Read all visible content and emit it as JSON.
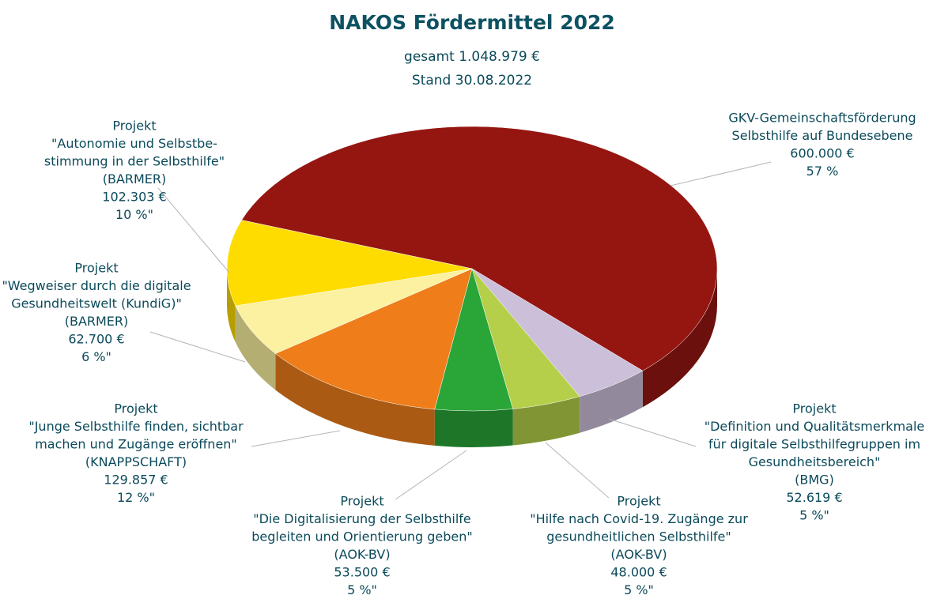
{
  "chart_data": {
    "type": "pie",
    "title": "NAKOS Fördermittel 2022",
    "subtitle": [
      "gesamt 1.048.979 €",
      "Stand 30.08.2022"
    ],
    "labels": [
      [
        "GKV-Gemeinschaftsförderung",
        "Selbsthilfe auf Bundesebene"
      ],
      [
        "Projekt",
        "\"Definition und Qualitätsmerkmale",
        "für digitale Selbsthilfegruppen im",
        "Gesundheitsbereich\"",
        "(BMG)"
      ],
      [
        "Projekt",
        "\"Hilfe nach Covid-19. Zugänge zur",
        "gesundheitlichen Selbsthilfe\"",
        "(AOK-BV)"
      ],
      [
        "Projekt",
        "\"Die Digitalisierung der Selbsthilfe",
        "begleiten und Orientierung geben\"",
        "(AOK-BV)"
      ],
      [
        "Projekt",
        "\"Junge Selbsthilfe finden, sichtbar",
        "machen und Zugänge eröffnen\"",
        "(KNAPPSCHAFT)"
      ],
      [
        "Projekt",
        "\"Wegweiser durch die digitale",
        "Gesundheitswelt (KundiG)\"",
        "(BARMER)"
      ],
      [
        "Projekt",
        "\"Autonomie und Selbstbe-",
        "stimmung in der Selbsthilfe\"",
        "(BARMER)"
      ]
    ],
    "values": [
      600000,
      52619,
      48000,
      53500,
      129857,
      62700,
      102303
    ],
    "value_labels": [
      "600.000 €",
      "52.619 €",
      "48.000 €",
      "53.500 €",
      "129.857 €",
      "62.700 €",
      "102.303 €"
    ],
    "percentages": [
      57,
      5,
      5,
      5,
      12,
      6,
      10
    ],
    "percentage_labels": [
      "57 %",
      "5 %\"",
      "5 %\"",
      "5 %\"",
      "12 %\"",
      "6 %\"",
      "10 %\""
    ],
    "colors": [
      "#951611",
      "#cbbfd9",
      "#b5cf4a",
      "#2aa538",
      "#ee7d1a",
      "#fbf1a0",
      "#fedc00"
    ]
  }
}
